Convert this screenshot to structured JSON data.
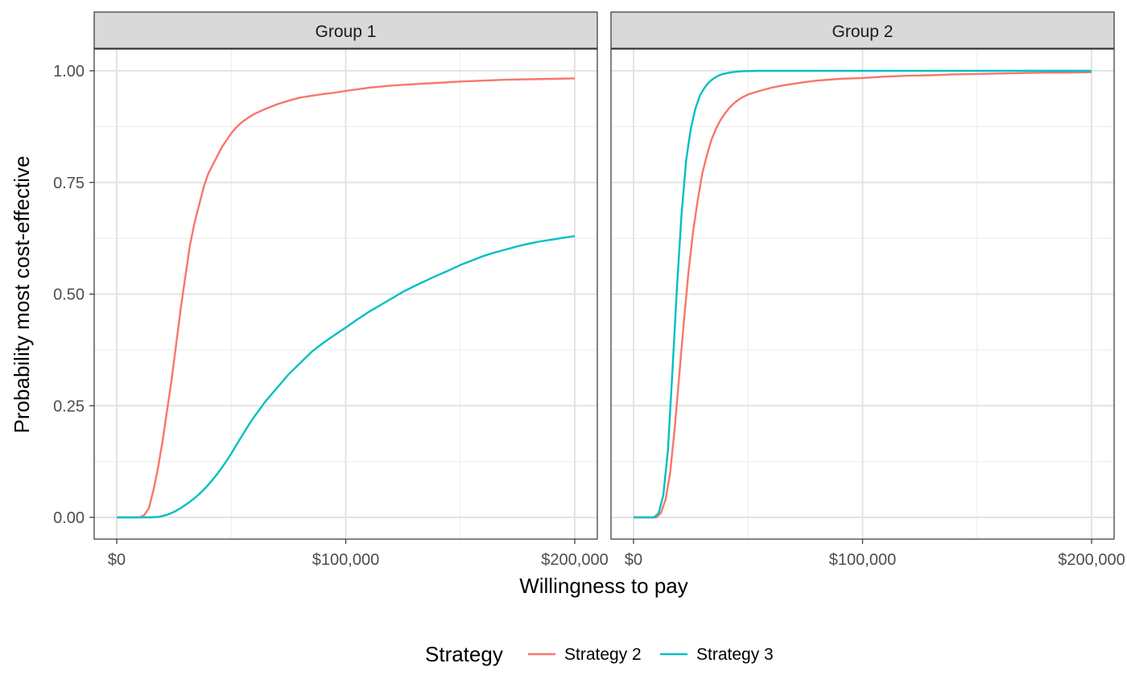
{
  "chart_data": {
    "type": "line",
    "xlabel": "Willingness to pay",
    "ylabel": "Probability most cost-effective",
    "xlim": [
      0,
      200000
    ],
    "ylim": [
      0,
      1
    ],
    "x_ticks": [
      0,
      100000,
      200000
    ],
    "x_tick_labels": [
      "$0",
      "$100,000",
      "$200,000"
    ],
    "y_ticks": [
      0,
      0.25,
      0.5,
      0.75,
      1.0
    ],
    "y_tick_labels": [
      "0.00",
      "0.25",
      "0.50",
      "0.75",
      "1.00"
    ],
    "grid": true,
    "legend": {
      "title": "Strategy",
      "position": "bottom",
      "entries": [
        "Strategy 2",
        "Strategy 3"
      ]
    },
    "colors": {
      "Strategy 2": "#F8766D",
      "Strategy 3": "#00BFC4"
    },
    "panels": [
      {
        "label": "Group 1",
        "series": [
          {
            "name": "Strategy 2",
            "x": [
              0,
              10000,
              12000,
              14000,
              16000,
              18000,
              20000,
              22000,
              24000,
              26000,
              28000,
              30000,
              32000,
              34000,
              36000,
              38000,
              40000,
              42000,
              44000,
              46000,
              48000,
              50000,
              52000,
              54000,
              56000,
              58000,
              60000,
              65000,
              70000,
              75000,
              80000,
              85000,
              90000,
              95000,
              100000,
              110000,
              120000,
              130000,
              140000,
              150000,
              160000,
              170000,
              180000,
              190000,
              200000
            ],
            "y": [
              0,
              0,
              0.005,
              0.02,
              0.06,
              0.11,
              0.17,
              0.24,
              0.31,
              0.39,
              0.47,
              0.54,
              0.61,
              0.66,
              0.7,
              0.74,
              0.77,
              0.79,
              0.81,
              0.83,
              0.845,
              0.86,
              0.872,
              0.882,
              0.89,
              0.897,
              0.903,
              0.915,
              0.925,
              0.933,
              0.94,
              0.944,
              0.948,
              0.951,
              0.955,
              0.962,
              0.967,
              0.97,
              0.973,
              0.976,
              0.978,
              0.98,
              0.981,
              0.982,
              0.983
            ]
          },
          {
            "name": "Strategy 3",
            "x": [
              0,
              15000,
              18000,
              20000,
              22000,
              24000,
              26000,
              28000,
              30000,
              32000,
              34000,
              36000,
              38000,
              40000,
              42000,
              44000,
              46000,
              48000,
              50000,
              52000,
              55000,
              58000,
              60000,
              65000,
              70000,
              75000,
              80000,
              85000,
              90000,
              95000,
              100000,
              105000,
              110000,
              115000,
              120000,
              125000,
              130000,
              135000,
              140000,
              145000,
              150000,
              155000,
              160000,
              165000,
              170000,
              175000,
              180000,
              185000,
              190000,
              195000,
              200000
            ],
            "y": [
              0,
              0,
              0.001,
              0.003,
              0.006,
              0.01,
              0.015,
              0.021,
              0.028,
              0.035,
              0.043,
              0.052,
              0.062,
              0.073,
              0.085,
              0.098,
              0.112,
              0.127,
              0.143,
              0.16,
              0.185,
              0.21,
              0.225,
              0.26,
              0.29,
              0.32,
              0.345,
              0.37,
              0.39,
              0.408,
              0.425,
              0.443,
              0.46,
              0.475,
              0.49,
              0.505,
              0.518,
              0.53,
              0.542,
              0.553,
              0.565,
              0.575,
              0.585,
              0.593,
              0.6,
              0.607,
              0.613,
              0.618,
              0.622,
              0.626,
              0.63
            ]
          }
        ]
      },
      {
        "label": "Group 2",
        "series": [
          {
            "name": "Strategy 2",
            "x": [
              0,
              10000,
              12000,
              14000,
              16000,
              18000,
              20000,
              22000,
              24000,
              26000,
              28000,
              30000,
              32000,
              34000,
              36000,
              38000,
              40000,
              42000,
              44000,
              46000,
              48000,
              50000,
              55000,
              60000,
              65000,
              70000,
              75000,
              80000,
              90000,
              100000,
              110000,
              120000,
              130000,
              140000,
              150000,
              160000,
              170000,
              180000,
              190000,
              200000
            ],
            "y": [
              0,
              0,
              0.01,
              0.04,
              0.1,
              0.2,
              0.32,
              0.44,
              0.55,
              0.64,
              0.71,
              0.77,
              0.81,
              0.845,
              0.87,
              0.89,
              0.905,
              0.918,
              0.928,
              0.936,
              0.942,
              0.947,
              0.955,
              0.962,
              0.967,
              0.971,
              0.975,
              0.978,
              0.982,
              0.984,
              0.987,
              0.989,
              0.99,
              0.992,
              0.993,
              0.994,
              0.995,
              0.996,
              0.996,
              0.997
            ]
          },
          {
            "name": "Strategy 3",
            "x": [
              0,
              9000,
              11000,
              13000,
              15000,
              17000,
              19000,
              21000,
              23000,
              25000,
              27000,
              29000,
              31000,
              33000,
              35000,
              37000,
              39000,
              41000,
              43000,
              45000,
              47000,
              50000,
              55000,
              60000,
              70000,
              80000,
              100000,
              120000,
              140000,
              160000,
              180000,
              200000
            ],
            "y": [
              0,
              0,
              0.01,
              0.05,
              0.15,
              0.33,
              0.52,
              0.68,
              0.8,
              0.87,
              0.915,
              0.945,
              0.962,
              0.975,
              0.983,
              0.989,
              0.993,
              0.995,
              0.997,
              0.998,
              0.999,
              0.9995,
              1.0,
              1.0,
              1.0,
              1.0,
              1.0,
              1.0,
              1.0,
              1.0,
              1.0,
              1.0
            ]
          }
        ]
      }
    ]
  }
}
